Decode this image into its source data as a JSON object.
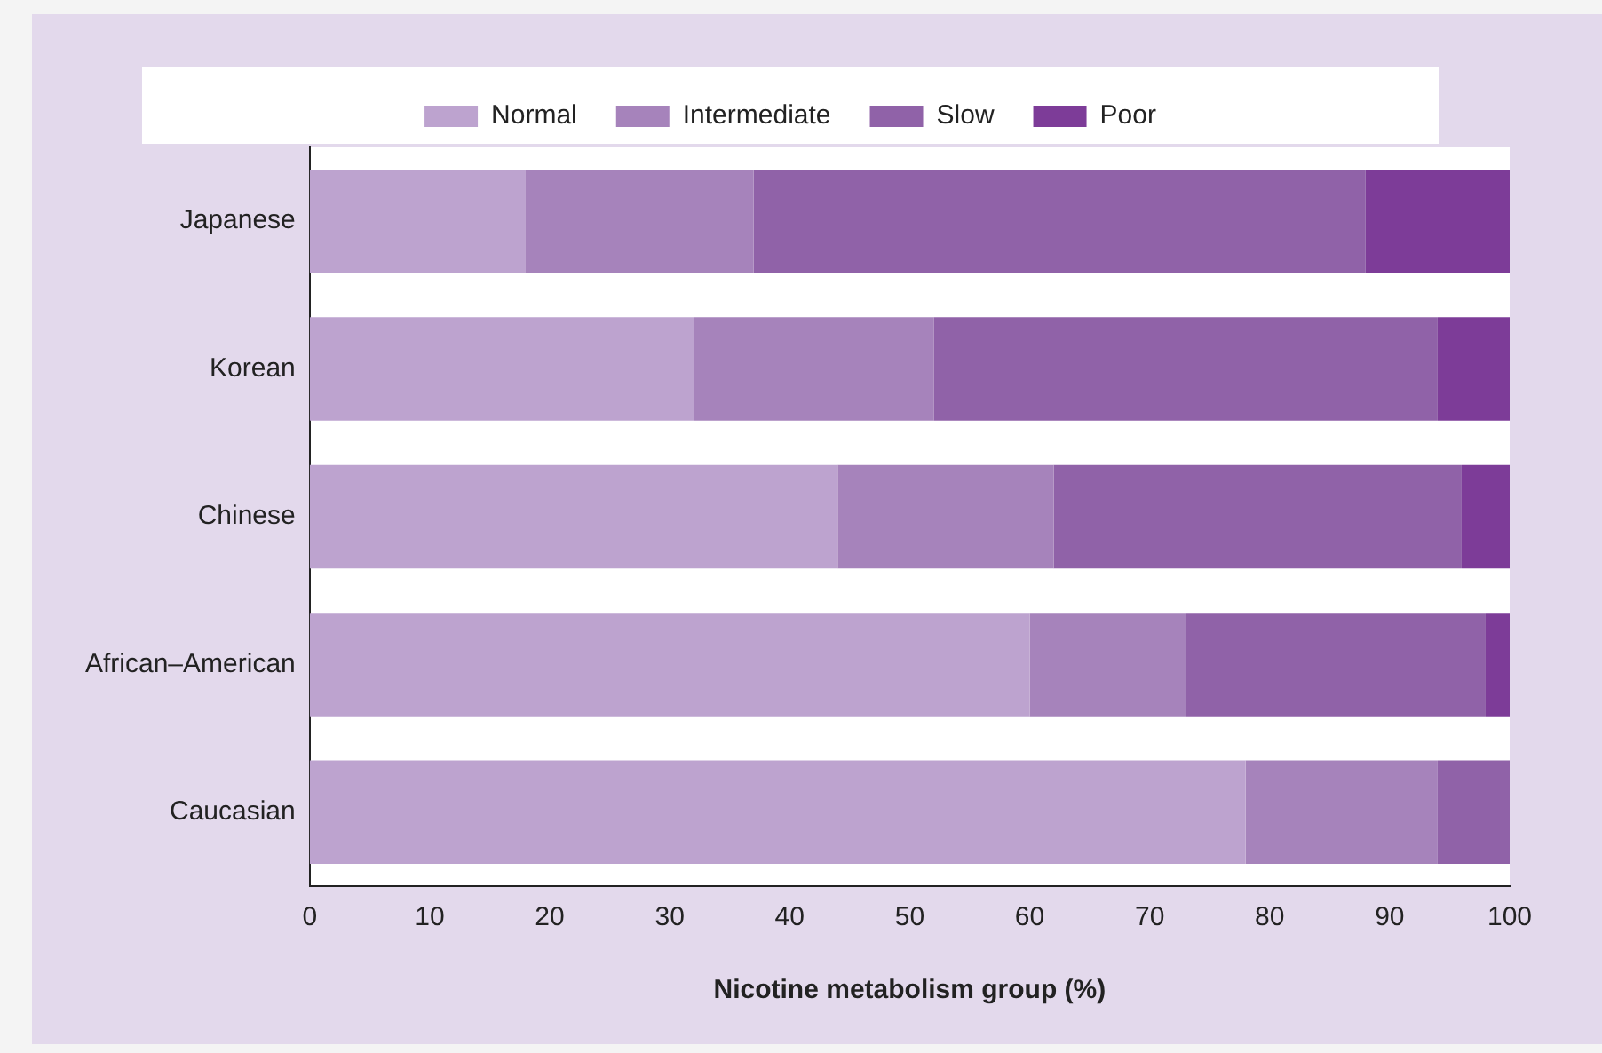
{
  "chart_data": {
    "type": "bar",
    "orientation": "horizontal",
    "stacked": true,
    "xlabel": "Nicotine metabolism group (%)",
    "categories": [
      "Japanese",
      "Korean",
      "Chinese",
      "African–American",
      "Caucasian"
    ],
    "series": [
      {
        "name": "Normal",
        "color": "#bda3cf",
        "values": [
          18,
          32,
          44,
          60,
          78
        ]
      },
      {
        "name": "Intermediate",
        "color": "#a683bb",
        "values": [
          19,
          20,
          18,
          13,
          16
        ]
      },
      {
        "name": "Slow",
        "color": "#9062a8",
        "values": [
          51,
          42,
          34,
          25,
          6
        ]
      },
      {
        "name": "Poor",
        "color": "#7d3c98",
        "values": [
          12,
          6,
          4,
          2,
          0
        ]
      }
    ],
    "xlim": [
      0,
      100
    ],
    "xticks": [
      0,
      10,
      20,
      30,
      40,
      50,
      60,
      70,
      80,
      90,
      100
    ],
    "grid": false,
    "legend": "top"
  }
}
